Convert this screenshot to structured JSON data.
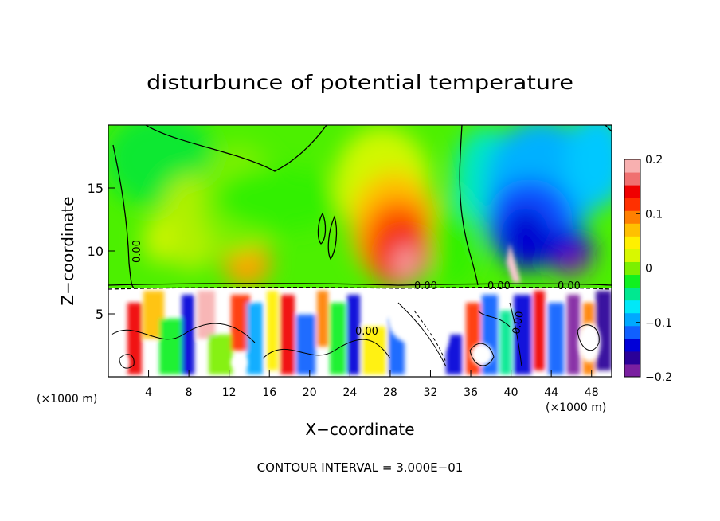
{
  "chart_data": {
    "type": "heatmap",
    "title": "disturbunce of potential temperature",
    "xlabel": "X−coordinate",
    "ylabel": "Z−coordinate",
    "x_unit": "(×1000 m)",
    "x_unit_right": "(×1000 m)",
    "xlim": [
      0,
      50
    ],
    "ylim": [
      0,
      20
    ],
    "x_ticks": [
      4,
      8,
      12,
      16,
      20,
      24,
      28,
      32,
      36,
      40,
      44,
      48
    ],
    "y_ticks": [
      5,
      10,
      15
    ],
    "colorbar": {
      "min": -0.2,
      "max": 0.2,
      "tick_labels": [
        "0.2",
        "0.1",
        "0",
        "−0.1",
        "−0.2"
      ],
      "tick_values": [
        0.2,
        0.1,
        0,
        -0.1,
        -0.2
      ],
      "colors": [
        "#7a1fa0",
        "#2a0098",
        "#0000d8",
        "#1060ff",
        "#00a8ff",
        "#00e8f8",
        "#00e890",
        "#10f020",
        "#7cf000",
        "#d8f800",
        "#fff000",
        "#ffc000",
        "#ff8000",
        "#ff3000",
        "#f00000",
        "#f07070",
        "#f8b0b0"
      ]
    },
    "contour_labels": [
      "0.00",
      "0.00",
      "0.00",
      "0.00",
      "0.00",
      "0.00"
    ],
    "footer": "CONTOUR INTERVAL = 3.000E−01"
  }
}
